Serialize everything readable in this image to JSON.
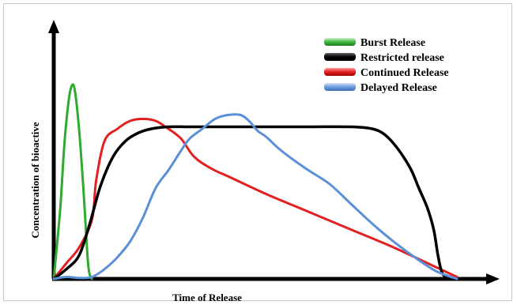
{
  "chart_data": {
    "type": "line",
    "title": "",
    "xlabel": "Time of Release",
    "ylabel": "Concentration of bioactive",
    "xlim": [
      0,
      100
    ],
    "ylim": [
      0,
      100
    ],
    "grid": false,
    "legend_position": "top-right",
    "series": [
      {
        "name": "Burst Release",
        "color": "#2eaa2e",
        "x": [
          0,
          1.5,
          2.5,
          3.5,
          4.3,
          5,
          6,
          7,
          8,
          8.5,
          9
        ],
        "y": [
          0,
          35,
          68,
          90,
          98,
          95,
          75,
          45,
          10,
          2,
          0
        ]
      },
      {
        "name": "Restricted release",
        "color": "#000000",
        "x": [
          0,
          3,
          6,
          8.5,
          11,
          14,
          17,
          20,
          23,
          27,
          32,
          40,
          50,
          60,
          70,
          75,
          78,
          81,
          84,
          86,
          88,
          89.5,
          90.5,
          91.5,
          93,
          95
        ],
        "y": [
          0,
          5,
          12,
          28,
          47,
          62,
          70,
          74,
          76,
          77,
          77,
          77,
          77,
          77,
          77,
          76,
          73,
          66,
          56,
          46,
          36,
          25,
          12,
          3,
          0.5,
          0
        ]
      },
      {
        "name": "Continued Release",
        "color": "#e32020",
        "x": [
          0,
          3,
          6,
          9,
          10,
          12,
          15,
          18,
          21,
          24,
          27,
          30,
          33,
          37,
          42,
          50,
          60,
          70,
          80,
          90,
          95
        ],
        "y": [
          0,
          8,
          16,
          30,
          50,
          70,
          76,
          80,
          81,
          80,
          76,
          71,
          62,
          56,
          51,
          43,
          34,
          25,
          16,
          6,
          1
        ]
      },
      {
        "name": "Delayed Release",
        "color": "#5b8fd8",
        "x": [
          0,
          3,
          6,
          9,
          12,
          15,
          18,
          21,
          24,
          27,
          30,
          32,
          35,
          38,
          41,
          44,
          46,
          48,
          50,
          53,
          56,
          60,
          65,
          70,
          75,
          80,
          85,
          90,
          95
        ],
        "y": [
          0,
          1,
          0.5,
          1,
          5,
          11,
          19,
          31,
          46,
          55,
          65,
          71,
          76,
          81,
          83,
          83,
          80,
          75,
          72,
          66,
          61,
          55,
          48,
          38,
          28,
          19,
          11,
          4,
          0
        ]
      }
    ]
  }
}
